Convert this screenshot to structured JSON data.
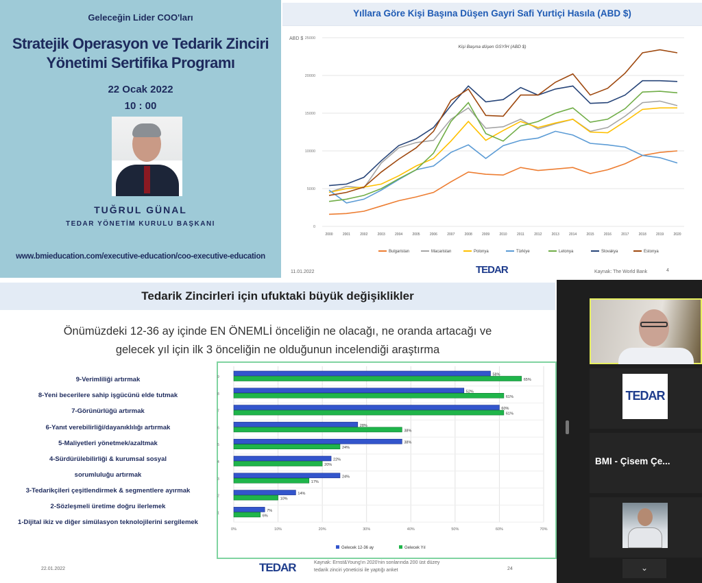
{
  "left_panel": {
    "kicker": "Geleceğin Lider COO'ları",
    "title_line1": "Stratejik Operasyon ve Tedarik Zinciri",
    "title_line2": "Yönetimi Sertifika Programı",
    "date": "22 Ocak 2022",
    "time": "10 : 00",
    "speaker_name": "TUĞRUL GÜNAL",
    "speaker_role": "TEDAR YÖNETİM KURULU BAŞKANI",
    "url": "www.bmieducation.com/executive-education/coo-executive-education",
    "bg_color": "#9ecad7"
  },
  "top_slide": {
    "title": "Yıllara Göre Kişi Başına Düşen Gayri Safi Yurtiçi Hasıla (ABD $)",
    "footer_date": "11.01.2022",
    "footer_logo": "TEDAR",
    "footer_source": "Kaynak: The World Bank",
    "page_number": "4"
  },
  "bottom_slide": {
    "title": "Tedarik Zincirleri için ufuktaki büyük değişiklikler",
    "subtitle_line1": "Önümüzdeki 12-36 ay içinde EN ÖNEMLİ önceliğin ne olacağı, ne oranda artacağı ve",
    "subtitle_line2": "gelecek yıl için ilk 3 önceliğin ne olduğunun incelendiği araştırma",
    "labels": [
      "9-Verimliliği artırmak",
      "8-Yeni becerilere sahip işgücünü elde tutmak",
      "7-Görünürlüğü artırmak",
      "6-Yanıt verebilirliği/dayanıklılığı artırmak",
      "5-Maliyetleri yönetmek/azaltmak",
      "4-Sürdürülebilirliği & kurumsal sosyal",
      "sorumluluğu artırmak",
      "3-Tedarikçileri çeşitlendirmek & segmentlere ayırmak",
      "2-Sözleşmeli üretime doğru ilerlemek",
      "1-Dijital ikiz ve diğer simülasyon teknolojilerini sergilemek"
    ],
    "footer_date": "22.01.2022",
    "footer_logo": "TEDAR",
    "footer_source_line1": "Kaynak: Ernst&Young'ın 2020'nin sonlarında 200 üst düzey",
    "footer_source_line2": "tedarik zinciri yöneticisi ile yaptığı anket",
    "page_number": "24"
  },
  "participants": {
    "tiles": [
      {
        "type": "video"
      },
      {
        "type": "logo",
        "logo_text": "TEDAR"
      },
      {
        "type": "name",
        "name": "BMI - Çisem Çe..."
      },
      {
        "type": "avatar"
      }
    ],
    "scroll_down": "chevron-down-icon",
    "active_border": "#e8f060"
  },
  "chart_data": [
    {
      "type": "line",
      "title": "Kişi Başına düşen GSYİH (ABD $)",
      "ylabel": "ABD $",
      "ylim": [
        0,
        25000
      ],
      "yticks": [
        "0",
        "5000",
        "10000",
        "15000",
        "20000",
        "25000"
      ],
      "grid": true,
      "legend": "bottom",
      "x": [
        "2000",
        "2001",
        "2002",
        "2003",
        "2004",
        "2005",
        "2006",
        "2007",
        "2008",
        "2009",
        "2010",
        "2011",
        "2012",
        "2013",
        "2014",
        "2015",
        "2016",
        "2017",
        "2018",
        "2019",
        "2020"
      ],
      "series": [
        {
          "name": "Bulgaristan",
          "color": "#ed7d31",
          "values": [
            1600,
            1700,
            2000,
            2700,
            3400,
            3900,
            4500,
            5900,
            7200,
            6900,
            6800,
            7800,
            7400,
            7600,
            7800,
            7000,
            7500,
            8300,
            9400,
            9800,
            10000
          ]
        },
        {
          "name": "Macaristan",
          "color": "#a5a5a5",
          "values": [
            4500,
            5300,
            5100,
            8400,
            10400,
            11100,
            11400,
            14200,
            15700,
            13000,
            13200,
            14200,
            12900,
            13600,
            14200,
            12600,
            13100,
            14600,
            16400,
            16600,
            16000
          ]
        },
        {
          "name": "Polonya",
          "color": "#ffc000",
          "values": [
            4500,
            5000,
            5200,
            5600,
            6700,
            8000,
            9000,
            11300,
            13900,
            11400,
            12700,
            13900,
            13100,
            13700,
            14200,
            12500,
            12400,
            13900,
            15500,
            15700,
            15700
          ]
        },
        {
          "name": "Türkiye",
          "color": "#5b9bd5",
          "values": [
            4800,
            3100,
            3600,
            4800,
            6200,
            7500,
            8000,
            9800,
            10800,
            9000,
            10700,
            11400,
            11700,
            12600,
            12100,
            11000,
            10800,
            10500,
            9400,
            9100,
            8400
          ]
        },
        {
          "name": "Letonya",
          "color": "#70ad47",
          "values": [
            3300,
            3600,
            4100,
            5000,
            6300,
            7500,
            9700,
            13900,
            16400,
            12300,
            11300,
            13300,
            13900,
            15000,
            15700,
            13800,
            14200,
            15600,
            17800,
            17900,
            17700
          ]
        },
        {
          "name": "Slovakya",
          "color": "#264478",
          "values": [
            5400,
            5600,
            6500,
            8700,
            10700,
            11600,
            13100,
            16000,
            18600,
            16500,
            16800,
            18400,
            17400,
            18200,
            18600,
            16300,
            16400,
            17400,
            19300,
            19300,
            19200
          ]
        },
        {
          "name": "Estonya",
          "color": "#9e480e",
          "values": [
            4100,
            4500,
            5200,
            7200,
            8900,
            10400,
            12600,
            16700,
            18200,
            14700,
            14600,
            17400,
            17400,
            19100,
            20200,
            17400,
            18300,
            20300,
            23000,
            23400,
            23000
          ]
        }
      ]
    },
    {
      "type": "bar",
      "orientation": "horizontal",
      "categories": [
        "9",
        "8",
        "7",
        "6",
        "5",
        "4",
        "3",
        "2",
        "1"
      ],
      "xlim": [
        0,
        70
      ],
      "xticks": [
        "0%",
        "10%",
        "20%",
        "30%",
        "40%",
        "50%",
        "60%",
        "70%"
      ],
      "grid": true,
      "legend": "bottom",
      "series": [
        {
          "name": "Gelecek 12-36 ay",
          "color": "#3355cc",
          "values": [
            58,
            52,
            60,
            28,
            38,
            22,
            24,
            14,
            7
          ]
        },
        {
          "name": "Gelecek Yıl",
          "color": "#1fb54a",
          "values": [
            65,
            61,
            61,
            38,
            24,
            20,
            17,
            10,
            6
          ]
        }
      ]
    }
  ]
}
